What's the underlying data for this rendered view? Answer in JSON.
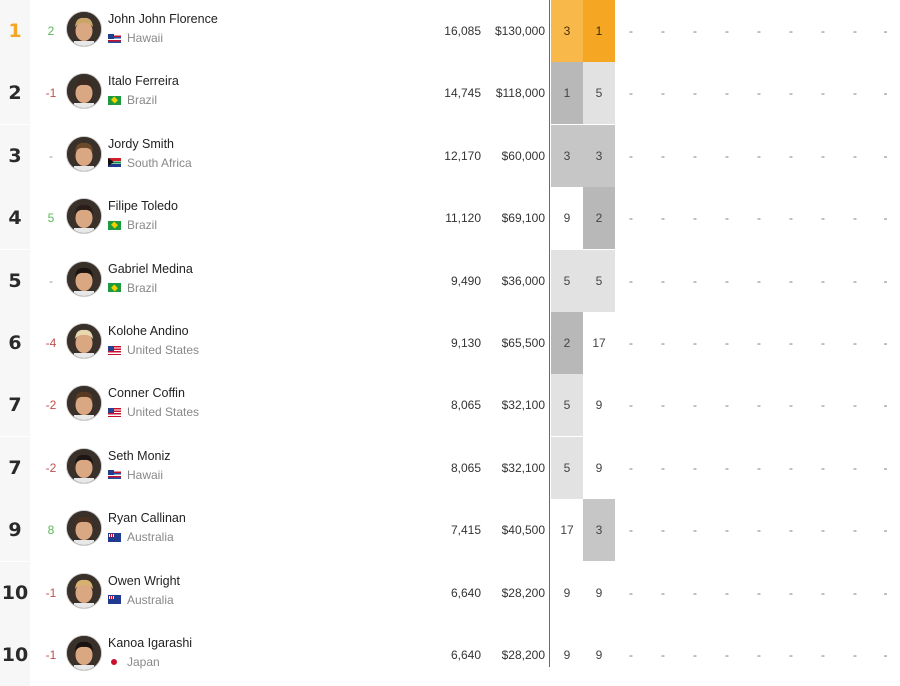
{
  "rankings": [
    {
      "rank": "1",
      "change": "2",
      "trend": "up",
      "name": "John John Florence",
      "country": "Hawaii",
      "flag": "hawaii",
      "points": "16,085",
      "prize": "$130,000",
      "results": [
        "3",
        "1"
      ],
      "avatar_hair": "#c9a56a"
    },
    {
      "rank": "2",
      "change": "-1",
      "trend": "down",
      "name": "Italo Ferreira",
      "country": "Brazil",
      "flag": "brazil",
      "points": "14,745",
      "prize": "$118,000",
      "results": [
        "1",
        "5"
      ],
      "avatar_hair": "#3a2a20"
    },
    {
      "rank": "3",
      "change": "-",
      "trend": "none",
      "name": "Jordy Smith",
      "country": "South Africa",
      "flag": "sa",
      "points": "12,170",
      "prize": "$60,000",
      "results": [
        "3",
        "3"
      ],
      "avatar_hair": "#6b4a2a"
    },
    {
      "rank": "4",
      "change": "5",
      "trend": "up",
      "name": "Filipe Toledo",
      "country": "Brazil",
      "flag": "brazil",
      "points": "11,120",
      "prize": "$69,100",
      "results": [
        "9",
        "2"
      ],
      "avatar_hair": "#2a1e18"
    },
    {
      "rank": "5",
      "change": "-",
      "trend": "none",
      "name": "Gabriel Medina",
      "country": "Brazil",
      "flag": "brazil",
      "points": "9,490",
      "prize": "$36,000",
      "results": [
        "5",
        "5"
      ],
      "avatar_hair": "#1c1410"
    },
    {
      "rank": "6",
      "change": "-4",
      "trend": "down",
      "name": "Kolohe Andino",
      "country": "United States",
      "flag": "us",
      "points": "9,130",
      "prize": "$65,500",
      "results": [
        "2",
        "17"
      ],
      "avatar_hair": "#e8d8b0"
    },
    {
      "rank": "7",
      "change": "-2",
      "trend": "down",
      "name": "Conner Coffin",
      "country": "United States",
      "flag": "us",
      "points": "8,065",
      "prize": "$32,100",
      "results": [
        "5",
        "9"
      ],
      "avatar_hair": "#5a3a22"
    },
    {
      "rank": "7",
      "change": "-2",
      "trend": "down",
      "name": "Seth Moniz",
      "country": "Hawaii",
      "flag": "hawaii",
      "points": "8,065",
      "prize": "$32,100",
      "results": [
        "5",
        "9"
      ],
      "avatar_hair": "#1e1612"
    },
    {
      "rank": "9",
      "change": "8",
      "trend": "up",
      "name": "Ryan Callinan",
      "country": "Australia",
      "flag": "au",
      "points": "7,415",
      "prize": "$40,500",
      "results": [
        "17",
        "3"
      ],
      "avatar_hair": "#4a3020"
    },
    {
      "rank": "10",
      "change": "-1",
      "trend": "down",
      "name": "Owen Wright",
      "country": "Australia",
      "flag": "au",
      "points": "6,640",
      "prize": "$28,200",
      "results": [
        "9",
        "9"
      ],
      "avatar_hair": "#d8b070"
    },
    {
      "rank": "10",
      "change": "-1",
      "trend": "down",
      "name": "Kanoa Igarashi",
      "country": "Japan",
      "flag": "jp",
      "points": "6,640",
      "prize": "$28,200",
      "results": [
        "9",
        "9"
      ],
      "avatar_hair": "#1a1210"
    }
  ],
  "empty_result": "-",
  "colors": {
    "gold": "#f5a623",
    "up": "#5cb85c",
    "down": "#c0504d"
  }
}
